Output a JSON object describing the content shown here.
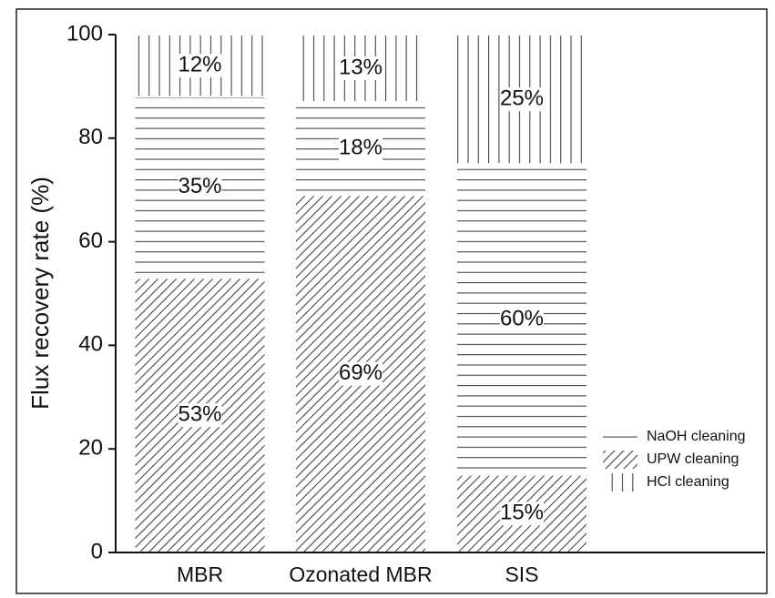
{
  "chart_data": {
    "type": "stacked-bar",
    "y_label": "Flux recovery rate (%)",
    "categories": [
      "MBR",
      "Ozonated MBR",
      "SIS"
    ],
    "series": [
      {
        "name": "UPW cleaning",
        "color": "#444444",
        "hatch": "diagonal",
        "values": [
          53,
          69,
          15
        ],
        "value_labels": [
          "53%",
          "69%",
          "15%"
        ]
      },
      {
        "name": "NaOH cleaning",
        "color": "#444444",
        "hatch": "horizontal",
        "values": [
          35,
          18,
          60
        ],
        "value_labels": [
          "35%",
          "18%",
          "60%"
        ]
      },
      {
        "name": "HCl cleaning",
        "color": "#444444",
        "hatch": "vertical",
        "values": [
          12,
          13,
          25
        ],
        "value_labels": [
          "12%",
          "13%",
          "25%"
        ]
      }
    ],
    "ylim": [
      0,
      100
    ],
    "yticks": [
      0,
      20,
      40,
      60,
      80,
      100
    ]
  }
}
